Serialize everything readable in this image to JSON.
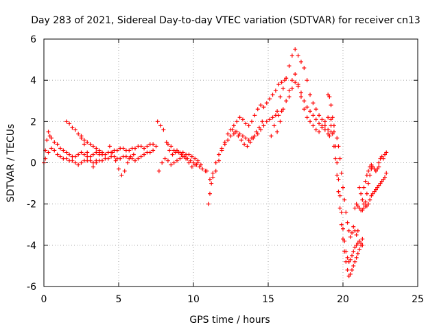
{
  "chart_data": {
    "type": "scatter",
    "title": "Day 283 of 2021, Sidereal Day-to-day VTEC variation (SDTVAR) for receiver cn13",
    "xlabel": "GPS time / hours",
    "ylabel": "SDTVAR / TECUs",
    "xlim": [
      0,
      25
    ],
    "ylim": [
      -6,
      6
    ],
    "xticks": [
      "0",
      "5",
      "10",
      "15",
      "20",
      "25"
    ],
    "yticks": [
      "-6",
      "-4",
      "-2",
      "0",
      "2",
      "4",
      "6"
    ],
    "grid": true,
    "marker": "+",
    "color": "#ff0000",
    "series": [
      {
        "x": [
          0.0,
          0.1,
          0.2,
          0.3,
          0.4,
          0.5,
          0.7,
          0.9,
          1.1,
          1.3,
          1.5,
          1.7,
          1.9,
          2.1,
          2.3,
          2.5,
          2.7,
          2.9,
          3.1,
          3.3,
          3.5,
          3.7,
          3.9,
          4.1,
          4.3,
          4.5,
          4.7,
          4.9,
          5.1,
          5.3,
          5.5,
          5.7,
          5.9,
          6.1,
          6.3,
          6.5,
          6.7,
          6.9,
          7.1,
          7.3,
          7.5
        ],
        "y": [
          0.0,
          0.6,
          1.1,
          1.5,
          1.3,
          1.2,
          1.0,
          0.9,
          0.7,
          0.6,
          0.5,
          0.4,
          0.3,
          0.3,
          0.4,
          0.5,
          0.4,
          0.3,
          0.3,
          0.4,
          0.5,
          0.5,
          0.4,
          0.4,
          0.5,
          0.5,
          0.6,
          0.6,
          0.7,
          0.7,
          0.6,
          0.6,
          0.7,
          0.7,
          0.8,
          0.8,
          0.7,
          0.8,
          0.9,
          0.9,
          0.8
        ]
      },
      {
        "x": [
          0.1,
          0.3,
          0.5,
          0.7,
          0.9,
          1.1,
          1.3,
          1.5,
          1.7,
          1.9,
          2.1,
          2.3,
          2.5,
          2.7,
          2.9,
          3.1,
          3.3,
          3.5,
          3.7,
          3.9,
          4.1,
          4.3,
          4.5,
          4.7,
          4.9,
          5.1,
          5.3,
          5.5,
          5.7,
          5.9,
          6.1,
          6.3,
          6.5,
          6.7,
          6.9,
          7.1,
          7.3
        ],
        "y": [
          0.2,
          0.5,
          0.7,
          0.6,
          0.4,
          0.3,
          0.2,
          0.2,
          0.1,
          0.1,
          0.0,
          -0.1,
          0.0,
          0.1,
          0.1,
          0.1,
          0.0,
          0.0,
          0.1,
          0.1,
          0.2,
          0.2,
          0.3,
          0.3,
          0.2,
          0.2,
          0.3,
          0.3,
          0.2,
          0.2,
          0.1,
          0.2,
          0.3,
          0.4,
          0.5,
          0.5,
          0.6
        ]
      },
      {
        "x": [
          1.5,
          1.7,
          1.9,
          2.1,
          2.3,
          2.5,
          2.7,
          2.9,
          3.1,
          3.3,
          3.5,
          3.7,
          3.9
        ],
        "y": [
          2.0,
          1.9,
          1.7,
          1.6,
          1.4,
          1.3,
          1.1,
          1.0,
          0.9,
          0.8,
          0.7,
          0.6,
          0.5
        ]
      },
      {
        "x": [
          2.5,
          2.7,
          2.9,
          3.1,
          3.3,
          3.5,
          3.7
        ],
        "y": [
          1.2,
          0.9,
          0.5,
          0.1,
          -0.2,
          0.1,
          0.4
        ]
      },
      {
        "x": [
          4.4,
          4.6,
          4.8,
          5.0,
          5.2,
          5.4,
          5.6,
          5.8,
          6.0
        ],
        "y": [
          0.8,
          0.5,
          0.1,
          -0.3,
          -0.6,
          -0.4,
          0.0,
          0.3,
          0.4
        ]
      },
      {
        "x": [
          7.6,
          7.8,
          8.0,
          8.2,
          8.4,
          8.6,
          8.8,
          9.0,
          9.2,
          9.4,
          9.6,
          9.8,
          10.0,
          10.2,
          10.4,
          10.6,
          10.8
        ],
        "y": [
          2.0,
          1.8,
          1.6,
          1.0,
          0.6,
          0.4,
          0.5,
          0.5,
          0.4,
          0.3,
          0.2,
          0.1,
          0.0,
          -0.1,
          -0.2,
          -0.3,
          -0.4
        ]
      },
      {
        "x": [
          7.7,
          7.9,
          8.1,
          8.3,
          8.5,
          8.7,
          8.9,
          9.1,
          9.3,
          9.5,
          9.7,
          9.9,
          10.1,
          10.3,
          10.5
        ],
        "y": [
          -0.4,
          0.0,
          0.2,
          0.1,
          -0.1,
          0.0,
          0.1,
          0.2,
          0.3,
          0.2,
          0.0,
          -0.2,
          -0.1,
          0.0,
          -0.1
        ]
      },
      {
        "x": [
          8.3,
          8.5,
          8.7,
          8.9,
          9.1,
          9.3,
          9.5,
          9.7,
          9.9,
          10.1,
          10.3
        ],
        "y": [
          0.9,
          0.8,
          0.6,
          0.6,
          0.5,
          0.5,
          0.4,
          0.4,
          0.3,
          0.2,
          0.1
        ]
      },
      {
        "x": [
          11.0,
          11.1,
          11.2,
          11.3,
          11.5,
          11.7,
          11.9,
          12.1,
          12.3,
          12.5,
          12.7,
          12.9,
          13.1,
          13.3,
          13.5,
          13.7,
          13.9,
          14.1,
          14.3,
          14.5,
          14.7,
          14.9,
          15.1,
          15.3,
          15.5,
          15.7,
          15.9
        ],
        "y": [
          -2.0,
          -1.5,
          -1.0,
          -0.5,
          0.0,
          0.4,
          0.7,
          0.9,
          1.1,
          1.3,
          1.4,
          1.5,
          1.4,
          1.3,
          1.2,
          1.1,
          1.2,
          1.3,
          1.4,
          1.6,
          1.8,
          2.0,
          2.1,
          2.2,
          2.3,
          2.3,
          2.5
        ]
      },
      {
        "x": [
          10.9,
          11.1,
          11.3,
          11.5,
          11.7,
          11.9,
          12.1,
          12.3,
          12.5,
          12.7,
          12.9,
          13.1,
          13.3,
          13.5,
          13.7,
          13.9,
          14.1,
          14.3,
          14.5,
          14.7,
          14.9,
          15.1,
          15.3,
          15.5,
          15.7,
          15.9,
          16.1
        ],
        "y": [
          -0.4,
          -0.8,
          -0.7,
          -0.4,
          0.1,
          0.6,
          1.0,
          1.4,
          1.6,
          1.8,
          2.0,
          2.2,
          2.1,
          1.9,
          1.8,
          2.0,
          2.3,
          2.6,
          2.8,
          2.7,
          2.9,
          3.1,
          3.3,
          3.5,
          3.8,
          3.9,
          4.0
        ]
      },
      {
        "x": [
          12.6,
          12.8,
          13.0,
          13.2,
          13.4,
          13.6,
          13.8,
          14.0,
          14.2,
          14.4,
          14.6
        ],
        "y": [
          1.6,
          1.5,
          1.3,
          1.1,
          0.9,
          0.8,
          1.0,
          1.2,
          1.5,
          1.7,
          2.0
        ]
      },
      {
        "x": [
          15.2,
          15.4,
          15.6,
          15.8,
          16.0,
          16.2,
          16.4,
          16.6,
          16.8,
          17.0,
          17.2,
          17.4,
          17.6,
          17.8,
          18.0,
          18.2,
          18.4,
          18.6,
          18.8,
          19.0,
          19.2
        ],
        "y": [
          1.3,
          1.8,
          2.5,
          3.2,
          3.6,
          4.1,
          4.7,
          5.2,
          5.5,
          5.2,
          4.9,
          4.6,
          4.0,
          3.3,
          2.9,
          2.6,
          2.3,
          2.1,
          1.8,
          1.6,
          1.5
        ]
      },
      {
        "x": [
          15.6,
          15.8,
          16.0,
          16.2,
          16.4,
          16.6,
          16.8,
          17.0,
          17.2,
          17.4,
          17.6,
          17.8,
          18.0,
          18.2,
          18.4,
          18.6,
          18.8,
          19.0,
          19.2,
          19.4
        ],
        "y": [
          1.5,
          2.0,
          2.6,
          3.0,
          3.5,
          4.0,
          4.3,
          3.8,
          3.2,
          2.6,
          2.2,
          2.0,
          1.8,
          1.6,
          1.5,
          1.7,
          2.0,
          2.2,
          2.1,
          1.8
        ]
      },
      {
        "x": [
          16.4,
          16.6,
          16.8,
          17.0,
          17.2,
          17.4,
          17.6,
          17.8,
          18.0,
          18.2,
          18.4,
          18.6,
          18.8,
          19.0,
          19.1
        ],
        "y": [
          3.2,
          3.6,
          3.9,
          3.7,
          3.4,
          3.0,
          2.7,
          2.5,
          2.3,
          2.1,
          1.9,
          1.8,
          1.6,
          1.4,
          1.3
        ]
      },
      {
        "x": [
          19.0,
          19.1,
          19.2,
          19.3,
          19.4,
          19.5,
          19.6,
          19.7,
          19.8,
          19.9,
          20.0,
          20.1,
          20.2,
          20.3,
          20.4,
          20.5,
          20.6,
          20.7,
          20.8,
          20.9,
          21.0,
          21.1,
          21.2,
          21.3
        ],
        "y": [
          3.3,
          3.2,
          2.8,
          2.2,
          1.5,
          0.8,
          0.0,
          -0.8,
          -1.6,
          -2.4,
          -3.2,
          -3.8,
          -4.3,
          -4.6,
          -4.8,
          -4.7,
          -4.5,
          -4.3,
          -4.1,
          -4.0,
          -3.9,
          -3.8,
          -3.9,
          -4.0
        ]
      },
      {
        "x": [
          19.2,
          19.3,
          19.4,
          19.5,
          19.6,
          19.7,
          19.8,
          19.9,
          20.0,
          20.1,
          20.2,
          20.3,
          20.4,
          20.5,
          20.6,
          20.7,
          20.8,
          20.9,
          21.0,
          21.1,
          21.2,
          21.3
        ],
        "y": [
          1.8,
          1.4,
          0.8,
          0.2,
          -0.6,
          -1.4,
          -2.2,
          -3.0,
          -3.7,
          -4.3,
          -4.8,
          -5.2,
          -5.5,
          -5.4,
          -5.2,
          -5.0,
          -4.8,
          -4.6,
          -4.4,
          -4.2,
          -4.0,
          -3.7
        ]
      },
      {
        "x": [
          19.6,
          19.7,
          19.8,
          19.9,
          20.0,
          20.1,
          20.2,
          20.3,
          20.4,
          20.5,
          20.6,
          20.7,
          20.8,
          20.9,
          21.0
        ],
        "y": [
          1.2,
          0.8,
          0.2,
          -0.5,
          -1.2,
          -1.8,
          -2.4,
          -2.9,
          -3.3,
          -3.6,
          -3.4,
          -3.1,
          -3.3,
          -3.5,
          -3.3
        ]
      },
      {
        "x": [
          20.8,
          20.9,
          21.0,
          21.1,
          21.2,
          21.3,
          21.4,
          21.5,
          21.6,
          21.7,
          21.8,
          21.9,
          22.0,
          22.1,
          22.2,
          22.3,
          22.4,
          22.5,
          22.6,
          22.7,
          22.8,
          22.9
        ],
        "y": [
          -2.2,
          -2.0,
          -2.1,
          -2.2,
          -2.3,
          -2.3,
          -2.2,
          -1.9,
          -1.5,
          -1.0,
          -0.6,
          -0.3,
          -0.2,
          -0.3,
          -0.4,
          -0.3,
          0.0,
          0.2,
          0.3,
          0.2,
          0.4,
          0.5
        ]
      },
      {
        "x": [
          21.1,
          21.2,
          21.3,
          21.4,
          21.5,
          21.6,
          21.7,
          21.8,
          21.9,
          22.0,
          22.1,
          22.2,
          22.3,
          22.4,
          22.5,
          22.6,
          22.7,
          22.8,
          22.9
        ],
        "y": [
          -1.2,
          -1.5,
          -1.8,
          -2.0,
          -2.1,
          -2.1,
          -2.0,
          -1.8,
          -1.6,
          -1.5,
          -1.4,
          -1.3,
          -1.2,
          -1.1,
          -1.0,
          -0.9,
          -0.8,
          -0.7,
          -0.5
        ]
      },
      {
        "x": [
          21.4,
          21.5,
          21.6,
          21.7,
          21.8,
          21.9,
          22.0,
          22.2,
          22.4
        ],
        "y": [
          -1.2,
          -0.9,
          -0.6,
          -0.4,
          -0.2,
          -0.1,
          -0.2,
          -0.4,
          -0.2
        ]
      }
    ]
  }
}
